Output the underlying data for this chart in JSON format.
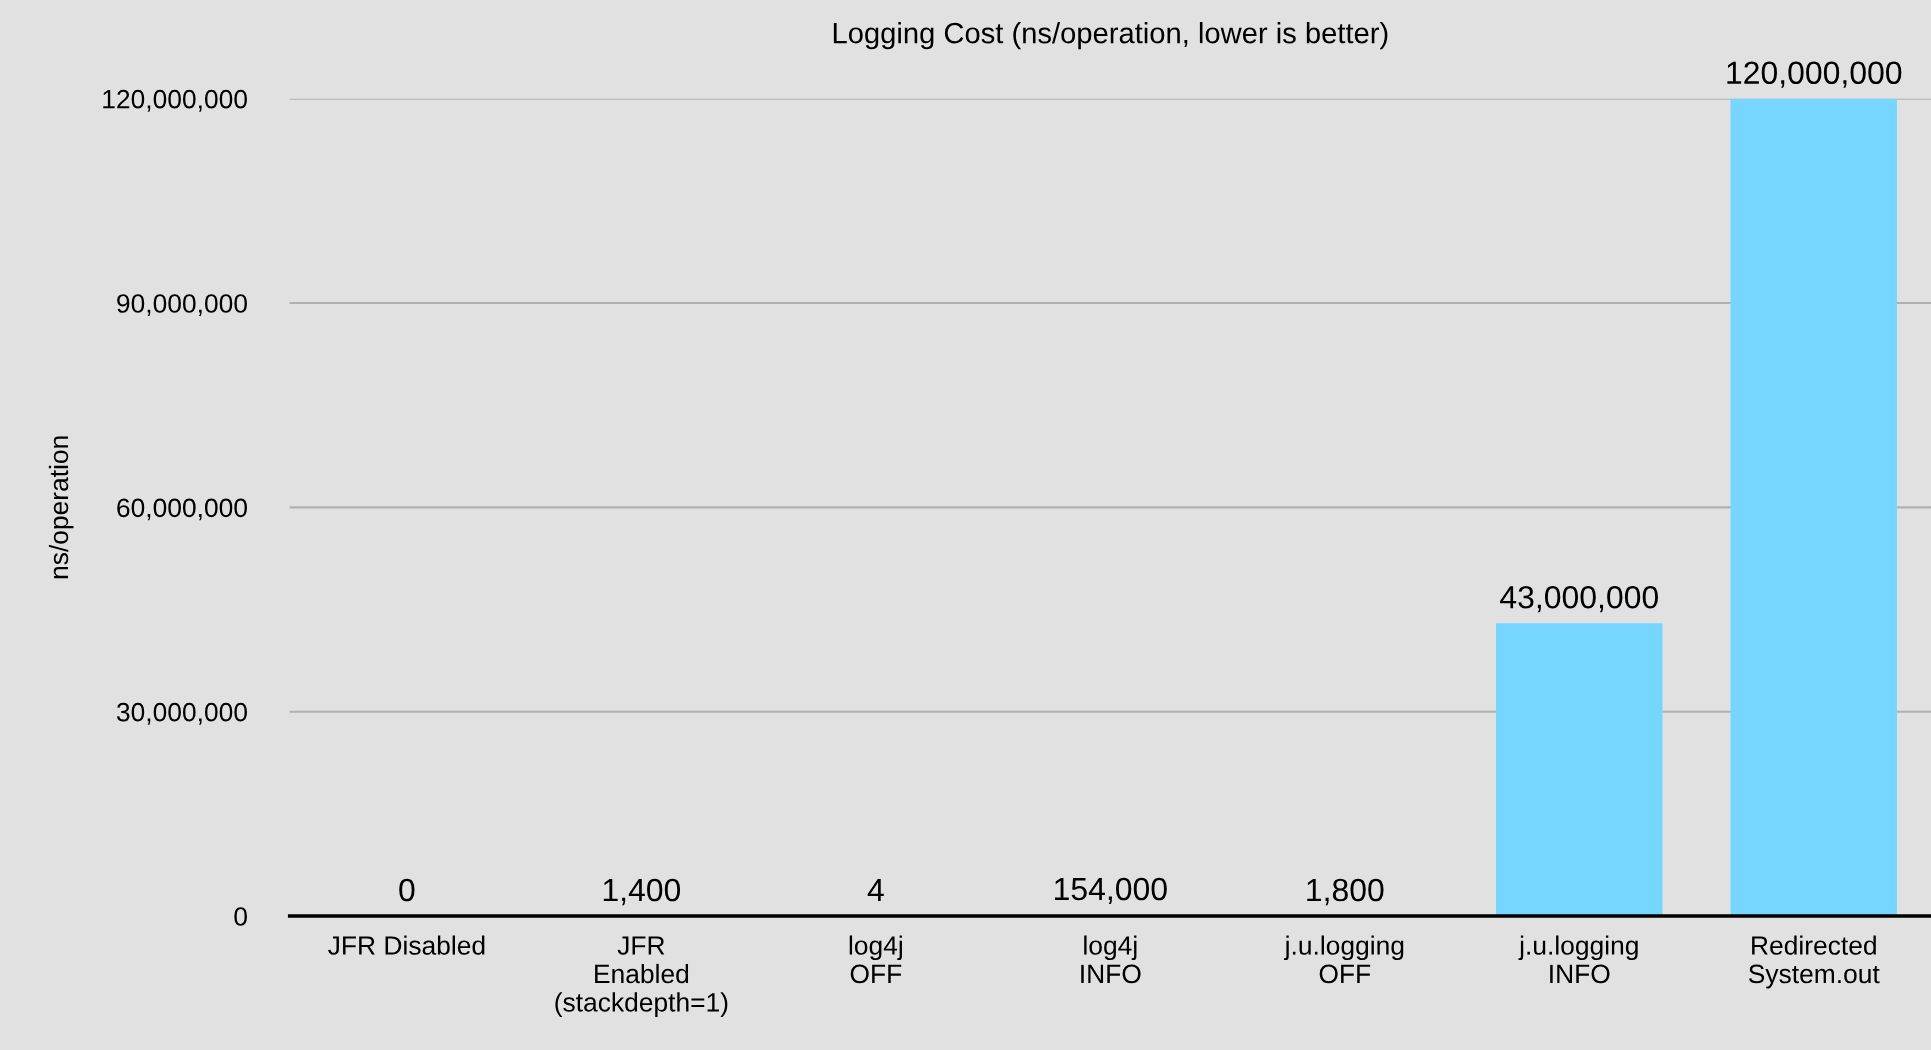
{
  "chart_data": {
    "type": "bar",
    "title": "Logging Cost (ns/operation, lower is better)",
    "ylabel": "ns/operation",
    "categories": [
      "JFR Disabled",
      "JFR\nEnabled\n(stackdepth=1)",
      "log4j\nOFF",
      "log4j\nINFO",
      "j.u.logging\nOFF",
      "j.u.logging\nINFO",
      "Redirected\nSystem.out"
    ],
    "values": [
      0,
      1400,
      4,
      154000,
      1800,
      43000000,
      120000000
    ],
    "value_labels": [
      "0",
      "1,400",
      "4",
      "154,000",
      "1,800",
      "43,000,000",
      "120,000,000"
    ],
    "color": "#76d6ff",
    "ylim": [
      0,
      120000000
    ],
    "yticks": [
      {
        "value": 0,
        "label": "0"
      },
      {
        "value": 30000000,
        "label": "30,000,000"
      },
      {
        "value": 60000000,
        "label": "60,000,000"
      },
      {
        "value": 90000000,
        "label": "90,000,000"
      },
      {
        "value": 120000000,
        "label": "120,000,000"
      }
    ],
    "grid": "y",
    "legend": false
  }
}
